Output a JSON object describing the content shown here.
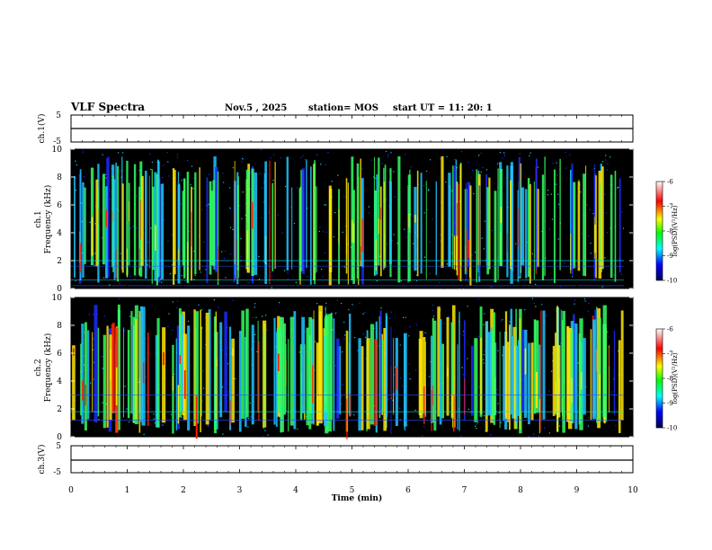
{
  "header": {
    "title": "VLF Spectra",
    "date": "Nov.5 , 2025",
    "station": "station= MOS",
    "start_ut": "start UT = 11: 20: 1"
  },
  "chart_data": {
    "type": "heatmap",
    "title": "VLF Spectra",
    "xlabel": "Time (min)",
    "xlim": [
      0,
      10
    ],
    "xticks": [
      0,
      1,
      2,
      3,
      4,
      5,
      6,
      7,
      8,
      9,
      10
    ],
    "panels": [
      {
        "name": "ch1-voltage",
        "ylabel": "ch.1(V)",
        "ylim": [
          -5,
          5
        ],
        "yticks": [
          5,
          -5
        ],
        "trace_level": -0.5
      },
      {
        "name": "ch1-spectrogram",
        "ylabel_top": "ch.1",
        "ylabel_bottom": "Frequency (kHz)",
        "ylim": [
          0,
          10
        ],
        "yticks": [
          0,
          2,
          4,
          6,
          8,
          10
        ],
        "data_end_time": 9.84
      },
      {
        "name": "ch2-spectrogram",
        "ylabel_top": "ch.2",
        "ylabel_bottom": "Frequency (kHz)",
        "ylim": [
          0,
          10
        ],
        "yticks": [
          0,
          2,
          4,
          6,
          8,
          10
        ],
        "data_end_time": 9.84
      },
      {
        "name": "ch3-voltage",
        "ylabel": "ch.3(V)",
        "ylim": [
          -5,
          5
        ],
        "yticks": [
          5,
          -5
        ],
        "trace_level": -0.5
      }
    ],
    "colorbar": {
      "label": "log(PSD)(V²/Hz)",
      "range": [
        -10,
        -6
      ],
      "ticks": [
        -6,
        -7,
        -8,
        -9,
        -10
      ],
      "colors": [
        "#ffffff",
        "#ff0000",
        "#ffff00",
        "#00ff00",
        "#00ffff",
        "#0000ff",
        "#000050"
      ]
    },
    "spectrogram_color_profile": {
      "background": "#000000",
      "low": "#1b2cff",
      "medium": "#1dc6ff",
      "high": "#31ff62",
      "very_high": "#ffe700",
      "max": "#ff1e00"
    }
  }
}
